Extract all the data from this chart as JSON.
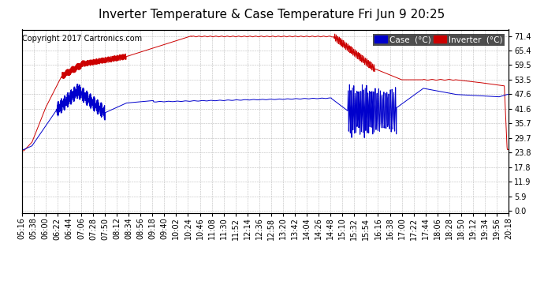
{
  "title": "Inverter Temperature & Case Temperature Fri Jun 9 20:25",
  "copyright": "Copyright 2017 Cartronics.com",
  "legend_case_label": "Case  (°C)",
  "legend_inverter_label": "Inverter  (°C)",
  "case_color": "#0000cc",
  "inverter_color": "#cc0000",
  "background_color": "#ffffff",
  "plot_bg_color": "#ffffff",
  "grid_color": "#aaaaaa",
  "yticks": [
    0.0,
    5.9,
    11.9,
    17.8,
    23.8,
    29.7,
    35.7,
    41.6,
    47.6,
    53.5,
    59.5,
    65.4,
    71.4
  ],
  "ylim": [
    -1.0,
    74.0
  ],
  "xtick_labels": [
    "05:16",
    "05:38",
    "06:00",
    "06:22",
    "06:44",
    "07:06",
    "07:28",
    "07:50",
    "08:12",
    "08:34",
    "08:56",
    "09:18",
    "09:40",
    "10:02",
    "10:24",
    "10:46",
    "11:08",
    "11:30",
    "11:52",
    "12:14",
    "12:36",
    "12:58",
    "13:20",
    "13:42",
    "14:04",
    "14:26",
    "14:48",
    "15:10",
    "15:32",
    "15:54",
    "16:16",
    "16:38",
    "17:00",
    "17:22",
    "17:44",
    "18:06",
    "18:28",
    "18:50",
    "19:12",
    "19:34",
    "19:56",
    "20:18"
  ],
  "title_fontsize": 11,
  "axis_fontsize": 7,
  "copyright_fontsize": 7
}
